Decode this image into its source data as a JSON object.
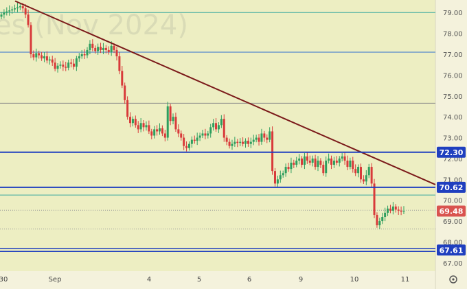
{
  "watermark": "es (Nov 2024)",
  "colors": {
    "plot_bg": "#edeec2",
    "axis_bg": "#f4f2dc",
    "bull": "#2e9e5e",
    "bear": "#d83a3a",
    "trendline": "#7b1a1a",
    "level": "#1f3fbf",
    "teal_line": "#3aa8a0",
    "blue_thin": "#2f6fd0",
    "gray_line": "#8a8a8a",
    "last_price": "#d9534f"
  },
  "chart_data": {
    "type": "candlestick",
    "title": "",
    "watermark": "es (Nov 2024)",
    "ylim": [
      66.6,
      79.6
    ],
    "y_ticks": [
      "79.00",
      "78.00",
      "77.00",
      "76.00",
      "75.00",
      "74.00",
      "73.00",
      "72.00",
      "71.00",
      "70.00",
      "69.00",
      "68.00",
      "67.00"
    ],
    "x_ticks": [
      "30",
      "Sep",
      "4",
      "5",
      "6",
      "9",
      "10",
      "11"
    ],
    "levels": [
      {
        "value": 72.3,
        "label": "72.30",
        "style": "thick"
      },
      {
        "value": 70.62,
        "label": "70.62",
        "style": "thick"
      },
      {
        "value": 67.61,
        "label": "67.61",
        "style": "double"
      }
    ],
    "horizontal_lines": [
      {
        "value": 79.0,
        "kind": "teal"
      },
      {
        "value": 77.1,
        "kind": "blue-thin"
      },
      {
        "value": 74.65,
        "kind": "gray"
      },
      {
        "value": 70.25,
        "kind": "teal"
      }
    ],
    "dotted_lines": [
      69.52,
      68.62
    ],
    "trendline": {
      "from": {
        "x": 0,
        "y": 79.55
      },
      "to": {
        "x": 1,
        "y": 70.75
      }
    },
    "last_price": {
      "value": 69.48,
      "label": "69.48"
    },
    "closes": [
      78.9,
      79.0,
      79.05,
      79.1,
      79.15,
      79.2,
      79.25,
      79.3,
      79.2,
      78.9,
      78.4,
      77.0,
      76.85,
      77.05,
      76.95,
      76.8,
      76.9,
      76.7,
      76.75,
      76.6,
      76.3,
      76.45,
      76.5,
      76.4,
      76.35,
      76.6,
      76.55,
      76.4,
      76.8,
      76.9,
      77.0,
      76.95,
      77.2,
      77.5,
      77.3,
      77.15,
      77.35,
      77.2,
      77.3,
      77.2,
      77.1,
      77.4,
      77.2,
      76.9,
      76.2,
      75.5,
      74.8,
      74.0,
      73.7,
      73.9,
      73.6,
      73.4,
      73.7,
      73.5,
      73.6,
      73.3,
      73.1,
      73.4,
      73.3,
      73.45,
      73.2,
      73.0,
      74.5,
      73.8,
      74.0,
      73.4,
      73.2,
      73.0,
      72.6,
      72.5,
      72.7,
      72.9,
      72.85,
      73.0,
      73.1,
      73.2,
      73.1,
      73.2,
      73.5,
      73.7,
      73.4,
      73.6,
      73.9,
      73.0,
      72.8,
      72.6,
      72.7,
      72.8,
      72.75,
      72.8,
      72.7,
      72.85,
      72.7,
      72.8,
      72.9,
      73.0,
      72.8,
      73.2,
      73.0,
      72.9,
      73.3,
      71.4,
      70.8,
      71.0,
      71.2,
      71.3,
      71.6,
      71.5,
      71.8,
      71.7,
      71.9,
      72.0,
      71.7,
      72.1,
      71.9,
      71.8,
      72.0,
      71.6,
      71.9,
      71.7,
      71.3,
      71.9,
      72.0,
      71.7,
      71.9,
      71.8,
      72.0,
      72.1,
      71.9,
      71.6,
      71.9,
      71.5,
      71.3,
      71.6,
      71.0,
      70.9,
      71.2,
      71.6,
      70.8,
      69.3,
      68.8,
      69.0,
      69.2,
      69.4,
      69.6,
      69.5,
      69.7,
      69.55,
      69.5,
      69.45,
      69.48
    ]
  },
  "axis": {
    "settings_icon": "gear-icon"
  }
}
